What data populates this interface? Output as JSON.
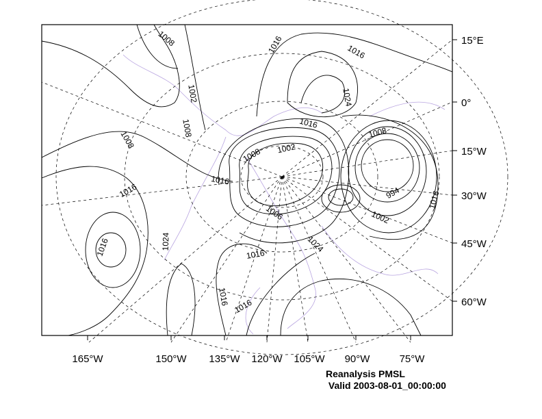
{
  "title": "Reanalysis PMSL",
  "subtitle": "Valid 2003-08-01_00:00:00",
  "map": {
    "field": "PMSL",
    "right_labels": [
      "15°E",
      "0°",
      "15°W",
      "30°W",
      "45°W",
      "60°W"
    ],
    "bottom_labels": [
      "165°W",
      "150°W",
      "135°W",
      "120°W",
      "105°W",
      "90°W",
      "75°W"
    ],
    "contour_labels": [
      "1008",
      "1016",
      "1016",
      "1002",
      "1008",
      "1024",
      "1016",
      "1008",
      "1008",
      "1002",
      "1008",
      "1016",
      "1016",
      "994",
      "1016",
      "1006",
      "1002",
      "1016",
      "1024",
      "1016",
      "1024",
      "1016",
      "1016"
    ],
    "colors": {
      "contour": "#000000",
      "coast": "#a58ed6",
      "grid": "#000000"
    }
  }
}
